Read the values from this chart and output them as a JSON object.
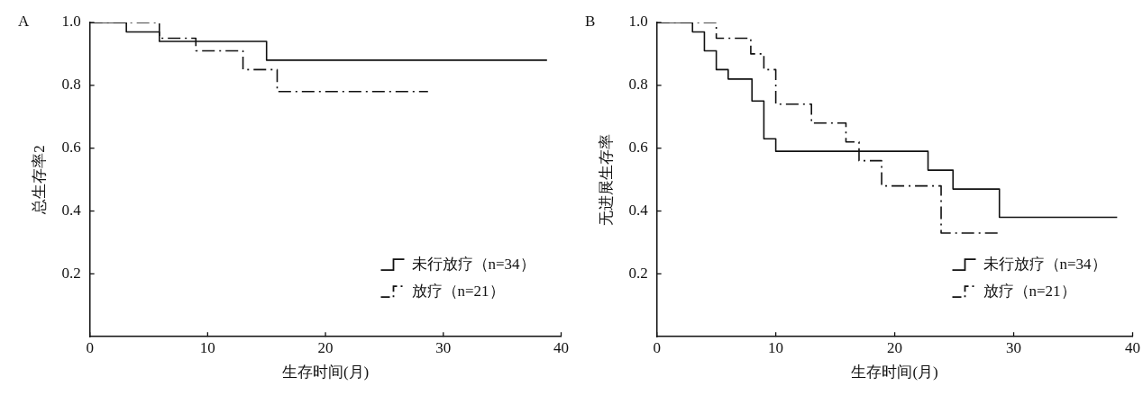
{
  "chart_data": [
    {
      "type": "step",
      "title": "A",
      "xlabel": "生存时间(月)",
      "ylabel": "总生存率2",
      "xlim": [
        0,
        40
      ],
      "xticks": [
        0,
        10,
        20,
        30,
        40
      ],
      "ylim": [
        0,
        1
      ],
      "yticks": [
        {
          "value": 0.2,
          "label": "0.2"
        },
        {
          "value": 0.4,
          "label": "0.4"
        },
        {
          "value": 0.6,
          "label": "0.6"
        },
        {
          "value": 0.8,
          "label": "0.8"
        },
        {
          "value": 1,
          "label": "1.0"
        }
      ],
      "grid": false,
      "legend": "bottom right",
      "series": [
        {
          "name": "未行放疗（n=34）",
          "color": "#111111",
          "line_style": "solid",
          "x": [
            0,
            3.1,
            5.9,
            15.0,
            38.8
          ],
          "values": [
            1,
            0.97,
            0.94,
            0.88,
            0.88
          ]
        },
        {
          "name": "放疗（n=21）",
          "color": "#111111",
          "line_style": "dashed",
          "x": [
            0,
            5.9,
            9.0,
            13.0,
            15.9,
            28.7
          ],
          "values": [
            1,
            0.95,
            0.91,
            0.85,
            0.78,
            0.78
          ]
        }
      ]
    },
    {
      "type": "step",
      "title": "B",
      "xlabel": "生存时间(月)",
      "ylabel": "无进展生存率",
      "xlim": [
        0,
        40
      ],
      "xticks": [
        0,
        10,
        20,
        30,
        40
      ],
      "ylim": [
        0,
        1
      ],
      "yticks": [
        {
          "value": 0.2,
          "label": "0.2"
        },
        {
          "value": 0.4,
          "label": "0.4"
        },
        {
          "value": 0.6,
          "label": "0.6"
        },
        {
          "value": 0.8,
          "label": "0.8"
        },
        {
          "value": 1,
          "label": "1.0"
        }
      ],
      "grid": false,
      "legend": "bottom right",
      "series": [
        {
          "name": "未行放疗（n=34）",
          "color": "#111111",
          "line_style": "solid",
          "x": [
            0,
            3.0,
            4.0,
            5.0,
            6.0,
            8.0,
            9.0,
            10.0,
            22.8,
            24.9,
            28.8,
            38.7
          ],
          "values": [
            1,
            0.97,
            0.91,
            0.85,
            0.82,
            0.75,
            0.63,
            0.59,
            0.53,
            0.47,
            0.38,
            0.38
          ]
        },
        {
          "name": "放疗（n=21）",
          "color": "#111111",
          "line_style": "dashed",
          "x": [
            0,
            5.0,
            7.9,
            9.0,
            10.0,
            13.0,
            15.9,
            17.0,
            18.9,
            23.9,
            28.8
          ],
          "values": [
            1,
            0.95,
            0.9,
            0.85,
            0.74,
            0.68,
            0.62,
            0.56,
            0.48,
            0.33,
            0.33
          ]
        }
      ]
    }
  ]
}
